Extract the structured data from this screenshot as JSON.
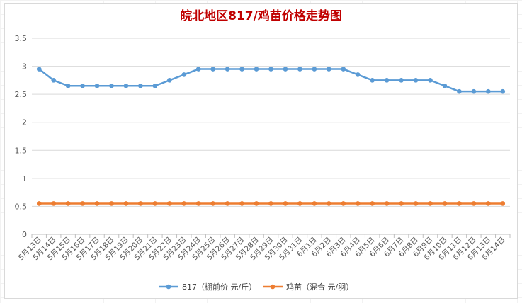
{
  "chart_data": {
    "type": "line",
    "title": "皖北地区817/鸡苗价格走势图",
    "xlabel": "",
    "ylabel": "",
    "ylim": [
      0,
      3.5
    ],
    "yticks": [
      "0",
      "0.5",
      "1",
      "1.5",
      "2",
      "2.5",
      "3",
      "3.5"
    ],
    "grid": true,
    "legend_position": "bottom",
    "categories": [
      "5月13日",
      "5月14日",
      "5月15日",
      "5月16日",
      "5月17日",
      "5月18日",
      "5月19日",
      "5月20日",
      "5月21日",
      "5月22日",
      "5月23日",
      "5月24日",
      "5月25日",
      "5月26日",
      "5月27日",
      "5月28日",
      "5月29日",
      "5月30日",
      "5月31日",
      "6月1日",
      "6月2日",
      "6月3日",
      "6月4日",
      "6月5日",
      "6月6日",
      "6月7日",
      "6月8日",
      "6月9日",
      "6月10日",
      "6月11日",
      "6月12日",
      "6月13日",
      "6月14日"
    ],
    "series": [
      {
        "name": "817（棚前价 元/斤）",
        "color": "#5b9bd5",
        "values": [
          2.95,
          2.75,
          2.65,
          2.65,
          2.65,
          2.65,
          2.65,
          2.65,
          2.65,
          2.75,
          2.85,
          2.95,
          2.95,
          2.95,
          2.95,
          2.95,
          2.95,
          2.95,
          2.95,
          2.95,
          2.95,
          2.95,
          2.85,
          2.75,
          2.75,
          2.75,
          2.75,
          2.75,
          2.65,
          2.55,
          2.55,
          2.55,
          2.55
        ]
      },
      {
        "name": "鸡苗（混合 元/羽）",
        "color": "#ed7d31",
        "values": [
          0.55,
          0.55,
          0.55,
          0.55,
          0.55,
          0.55,
          0.55,
          0.55,
          0.55,
          0.55,
          0.55,
          0.55,
          0.55,
          0.55,
          0.55,
          0.55,
          0.55,
          0.55,
          0.55,
          0.55,
          0.55,
          0.55,
          0.55,
          0.55,
          0.55,
          0.55,
          0.55,
          0.55,
          0.55,
          0.55,
          0.55,
          0.55,
          0.55
        ]
      }
    ]
  }
}
